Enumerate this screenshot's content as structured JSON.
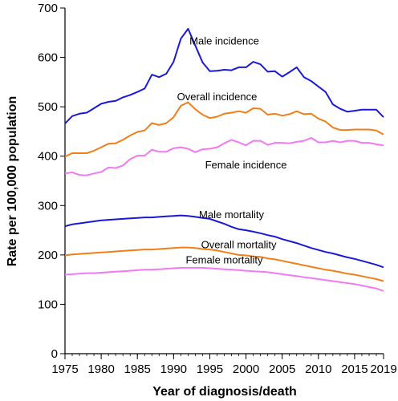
{
  "chart_data": {
    "type": "line",
    "title": "",
    "xlabel": "Year of diagnosis/death",
    "ylabel": "Rate per 100,000 population",
    "xlim": [
      1975,
      2019
    ],
    "ylim": [
      0,
      700
    ],
    "x_ticks": [
      1975,
      1980,
      1985,
      1990,
      1995,
      2000,
      2005,
      2010,
      2015,
      2019
    ],
    "y_ticks": [
      0,
      100,
      200,
      300,
      400,
      500,
      600,
      700
    ],
    "grid": false,
    "legend": "none",
    "x": [
      1975,
      1976,
      1977,
      1978,
      1979,
      1980,
      1981,
      1982,
      1983,
      1984,
      1985,
      1986,
      1987,
      1988,
      1989,
      1990,
      1991,
      1992,
      1993,
      1994,
      1995,
      1996,
      1997,
      1998,
      1999,
      2000,
      2001,
      2002,
      2003,
      2004,
      2005,
      2006,
      2007,
      2008,
      2009,
      2010,
      2011,
      2012,
      2013,
      2014,
      2015,
      2016,
      2017,
      2018,
      2019
    ],
    "series": [
      {
        "name": "Male incidence",
        "color": "#1a1ad6",
        "values": [
          466,
          481,
          486,
          488,
          497,
          506,
          510,
          512,
          519,
          524,
          530,
          537,
          565,
          560,
          567,
          591,
          638,
          658,
          624,
          590,
          572,
          573,
          575,
          574,
          580,
          580,
          591,
          586,
          571,
          572,
          561,
          570,
          580,
          560,
          552,
          541,
          530,
          505,
          496,
          490,
          492,
          494,
          494,
          494,
          479
        ]
      },
      {
        "name": "Overall incidence",
        "color": "#f07f1a",
        "values": [
          399,
          406,
          406,
          406,
          411,
          418,
          425,
          426,
          433,
          442,
          449,
          452,
          467,
          463,
          467,
          479,
          502,
          509,
          495,
          484,
          477,
          480,
          486,
          488,
          491,
          488,
          497,
          496,
          484,
          486,
          482,
          485,
          491,
          485,
          486,
          476,
          470,
          458,
          453,
          453,
          454,
          454,
          454,
          452,
          444
        ]
      },
      {
        "name": "Female incidence",
        "color": "#f279f2",
        "values": [
          365,
          367,
          362,
          361,
          365,
          368,
          377,
          376,
          381,
          394,
          401,
          401,
          413,
          409,
          409,
          416,
          418,
          415,
          408,
          414,
          415,
          418,
          426,
          433,
          428,
          422,
          431,
          431,
          423,
          427,
          427,
          426,
          429,
          431,
          437,
          428,
          428,
          431,
          428,
          431,
          431,
          427,
          427,
          424,
          422
        ]
      },
      {
        "name": "Male mortality",
        "color": "#1a1ad6",
        "values": [
          258,
          262,
          264,
          266,
          268,
          270,
          271,
          272,
          273,
          274,
          275,
          276,
          276,
          277,
          278,
          279,
          280,
          279,
          277,
          275,
          273,
          268,
          263,
          257,
          252,
          250,
          247,
          244,
          240,
          237,
          232,
          228,
          224,
          219,
          214,
          210,
          206,
          203,
          199,
          195,
          192,
          188,
          184,
          180,
          175
        ]
      },
      {
        "name": "Overall mortality",
        "color": "#f07f1a",
        "values": [
          199,
          201,
          202,
          203,
          204,
          205,
          206,
          207,
          208,
          209,
          210,
          211,
          211,
          212,
          213,
          214,
          215,
          215,
          214,
          212,
          211,
          209,
          206,
          203,
          200,
          199,
          197,
          196,
          193,
          191,
          188,
          185,
          182,
          179,
          176,
          173,
          170,
          168,
          165,
          162,
          160,
          157,
          154,
          151,
          147
        ]
      },
      {
        "name": "Female mortality",
        "color": "#f279f2",
        "values": [
          160,
          161,
          162,
          163,
          163,
          164,
          165,
          166,
          167,
          168,
          169,
          170,
          170,
          171,
          172,
          173,
          174,
          174,
          174,
          174,
          173,
          172,
          171,
          170,
          169,
          168,
          167,
          166,
          165,
          163,
          161,
          159,
          157,
          155,
          153,
          151,
          149,
          147,
          145,
          143,
          141,
          138,
          135,
          132,
          127
        ]
      }
    ]
  }
}
